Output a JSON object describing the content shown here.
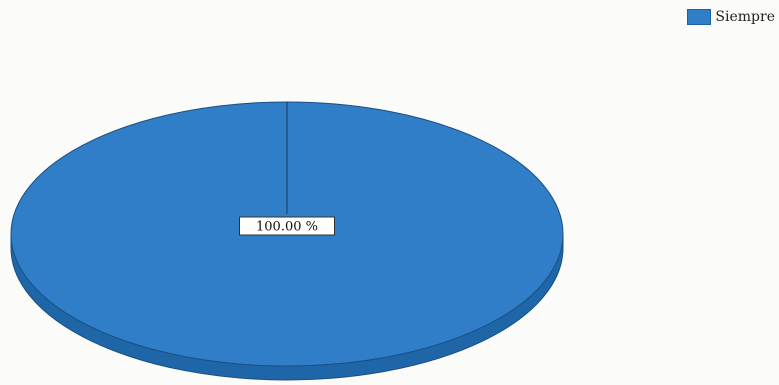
{
  "chart_data": {
    "type": "pie",
    "title": "",
    "slices": [
      {
        "name": "Siempre",
        "value": 100.0,
        "label": "100.00 %",
        "color": "#2f7ec7"
      }
    ],
    "legend_position": "top-right",
    "style": "3d"
  },
  "colors": {
    "slice_dark": "#1f66a8",
    "slice_edge": "#1a4f80"
  }
}
